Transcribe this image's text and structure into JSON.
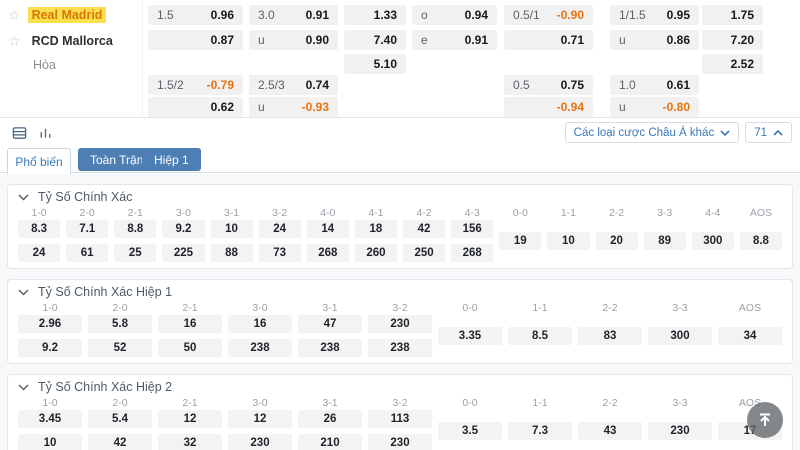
{
  "colors": {
    "accent_blue": "#4d7fb5",
    "link_blue": "#3878b8",
    "negative_orange": "#e8720c",
    "highlight_yellow": "#fbdf4e",
    "home_text": "#d97706",
    "cell_bg": "#f3f3f4"
  },
  "match": {
    "home": "Real Madrid",
    "away": "RCD Mallorca",
    "draw": "Hòa"
  },
  "asian": {
    "hdp": {
      "r1": {
        "l": "1.5",
        "v": "0.96"
      },
      "r2": {
        "l": "",
        "v": "0.87"
      },
      "r4": {
        "l": "1.5/2",
        "v": "-0.79"
      },
      "r5": {
        "l": "",
        "v": "0.62"
      }
    },
    "ou": {
      "r1": {
        "l": "3.0",
        "v": "0.91"
      },
      "r2": {
        "l": "u",
        "v": "0.90"
      },
      "r4": {
        "l": "2.5/3",
        "v": "0.74"
      },
      "r5": {
        "l": "u",
        "v": "-0.93"
      }
    },
    "x12": {
      "r1": "1.33",
      "r2": "7.40",
      "r3": "5.10"
    },
    "oe": {
      "r1": {
        "l": "o",
        "v": "0.94"
      },
      "r2": {
        "l": "e",
        "v": "0.91"
      }
    },
    "hdp2": {
      "r1": {
        "l": "0.5/1",
        "v": "-0.90"
      },
      "r2": {
        "l": "",
        "v": "0.71"
      },
      "r4": {
        "l": "0.5",
        "v": "0.75"
      },
      "r5": {
        "l": "",
        "v": "-0.94"
      }
    },
    "ou2": {
      "r1": {
        "l": "1/1.5",
        "v": "0.95"
      },
      "r2": {
        "l": "u",
        "v": "0.86"
      },
      "r4": {
        "l": "1.0",
        "v": "0.61"
      },
      "r5": {
        "l": "u",
        "v": "-0.80"
      }
    },
    "x12b": {
      "r1": "1.75",
      "r2": "7.20",
      "r3": "2.52"
    }
  },
  "toolbar": {
    "icons": [
      "table-view-icon",
      "chart-view-icon"
    ],
    "dropdown_label": "Các loại cược Châu Á khác",
    "market_count": "71"
  },
  "tabs": {
    "popular": "Phổ biến",
    "full_match": "Toàn Trận",
    "half1": "Hiệp 1"
  },
  "sections": [
    {
      "title": "Tỷ Số Chính Xác",
      "columns": [
        {
          "score": "1-0",
          "odds": [
            "8.3",
            "24"
          ]
        },
        {
          "score": "2-0",
          "odds": [
            "7.1",
            "61"
          ]
        },
        {
          "score": "2-1",
          "odds": [
            "8.8",
            "25"
          ]
        },
        {
          "score": "3-0",
          "odds": [
            "9.2",
            "225"
          ]
        },
        {
          "score": "3-1",
          "odds": [
            "10",
            "88"
          ]
        },
        {
          "score": "3-2",
          "odds": [
            "24",
            "73"
          ]
        },
        {
          "score": "4-0",
          "odds": [
            "14",
            "268"
          ]
        },
        {
          "score": "4-1",
          "odds": [
            "18",
            "260"
          ]
        },
        {
          "score": "4-2",
          "odds": [
            "42",
            "250"
          ]
        },
        {
          "score": "4-3",
          "odds": [
            "156",
            "268"
          ]
        },
        {
          "score": "0-0",
          "odds": [
            "19"
          ]
        },
        {
          "score": "1-1",
          "odds": [
            "10"
          ]
        },
        {
          "score": "2-2",
          "odds": [
            "20"
          ]
        },
        {
          "score": "3-3",
          "odds": [
            "89"
          ]
        },
        {
          "score": "4-4",
          "odds": [
            "300"
          ]
        },
        {
          "score": "AOS",
          "odds": [
            "8.8"
          ]
        }
      ]
    },
    {
      "title": "Tỷ Số Chính Xác Hiệp 1",
      "columns": [
        {
          "score": "1-0",
          "odds": [
            "2.96",
            "9.2"
          ]
        },
        {
          "score": "2-0",
          "odds": [
            "5.8",
            "52"
          ]
        },
        {
          "score": "2-1",
          "odds": [
            "16",
            "50"
          ]
        },
        {
          "score": "3-0",
          "odds": [
            "16",
            "238"
          ]
        },
        {
          "score": "3-1",
          "odds": [
            "47",
            "238"
          ]
        },
        {
          "score": "3-2",
          "odds": [
            "230",
            "238"
          ]
        },
        {
          "score": "0-0",
          "odds": [
            "3.35"
          ]
        },
        {
          "score": "1-1",
          "odds": [
            "8.5"
          ]
        },
        {
          "score": "2-2",
          "odds": [
            "83"
          ]
        },
        {
          "score": "3-3",
          "odds": [
            "300"
          ]
        },
        {
          "score": "AOS",
          "odds": [
            "34"
          ]
        }
      ]
    },
    {
      "title": "Tỷ Số Chính Xác Hiệp 2",
      "columns": [
        {
          "score": "1-0",
          "odds": [
            "3.45",
            "10"
          ]
        },
        {
          "score": "2-0",
          "odds": [
            "5.4",
            "42"
          ]
        },
        {
          "score": "2-1",
          "odds": [
            "12",
            "32"
          ]
        },
        {
          "score": "3-0",
          "odds": [
            "12",
            "230"
          ]
        },
        {
          "score": "3-1",
          "odds": [
            "26",
            "210"
          ]
        },
        {
          "score": "3-2",
          "odds": [
            "113",
            "230"
          ]
        },
        {
          "score": "0-0",
          "odds": [
            "3.5"
          ]
        },
        {
          "score": "1-1",
          "odds": [
            "7.3"
          ]
        },
        {
          "score": "2-2",
          "odds": [
            "43"
          ]
        },
        {
          "score": "3-3",
          "odds": [
            "230"
          ]
        },
        {
          "score": "AOS",
          "odds": [
            "17"
          ]
        }
      ]
    }
  ]
}
